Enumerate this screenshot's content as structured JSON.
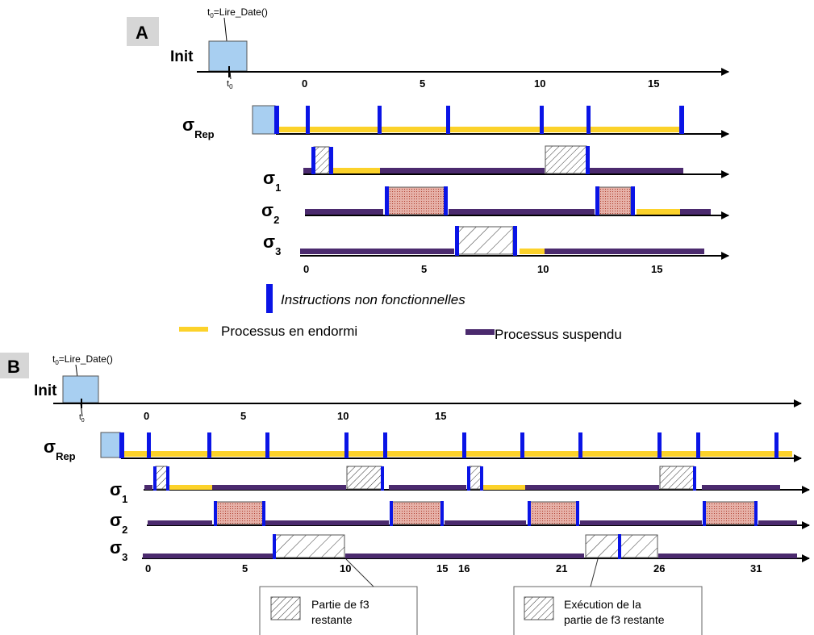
{
  "panels": {
    "A": {
      "label": "A",
      "init_label": "Init",
      "t0_annotation": "t0=Lire_Date()",
      "t0_marker": "t0",
      "ticks": [
        "0",
        "5",
        "10",
        "15"
      ],
      "rows": {
        "rep": {
          "symbol": "σ",
          "subscript": "Rep"
        },
        "s1": {
          "symbol": "σ",
          "subscript": "1"
        },
        "s2": {
          "symbol": "σ",
          "subscript": "2"
        },
        "s3": {
          "symbol": "σ",
          "subscript": "3"
        }
      }
    },
    "B": {
      "label": "B",
      "init_label": "Init",
      "t0_annotation": "t0=Lire_Date()",
      "t0_marker": "t0",
      "top_ticks": [
        "0",
        "5",
        "10",
        "15"
      ],
      "bottom_ticks": [
        "0",
        "5",
        "10",
        "15",
        "16",
        "21",
        "26",
        "31"
      ],
      "rows": {
        "rep": {
          "symbol": "σ",
          "subscript": "Rep"
        },
        "s1": {
          "symbol": "σ",
          "subscript": "1"
        },
        "s2": {
          "symbol": "σ",
          "subscript": "2"
        },
        "s3": {
          "symbol": "σ",
          "subscript": "3"
        }
      },
      "callout_left": [
        "Partie de f3",
        "restante"
      ],
      "callout_right": [
        "Exécution de la",
        "partie de f3 restante"
      ]
    }
  },
  "legend": {
    "non_functional": "Instructions non fonctionnelles",
    "sleeping": "Processus en endormi",
    "suspended": "Processus suspendu"
  },
  "colors": {
    "blue_instruction": "#0a14e6",
    "sleeping": "#fcd22a",
    "suspended": "#4b2a6e",
    "init_fill": "#a8cff1",
    "execution_fill": "#e8b0a8",
    "hatched_fill": "#ffffff"
  }
}
